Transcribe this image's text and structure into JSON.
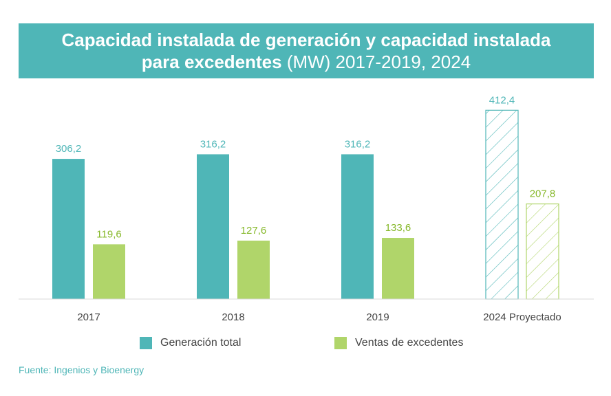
{
  "title": {
    "line1": "Capacidad instalada de generación y capacidad instalada",
    "line2_bold": "para excedentes",
    "line2_light": " (MW) 2017-2019, 2024"
  },
  "colors": {
    "teal": "#4fb6b7",
    "green": "#b0d56a",
    "teal_label": "#4fb6b7",
    "green_label": "#86b82a",
    "axis_label": "#444444"
  },
  "chart_data": {
    "type": "bar",
    "title": "Capacidad instalada de generación y capacidad instalada para excedentes (MW) 2017-2019, 2024",
    "categories": [
      "2017",
      "2018",
      "2019",
      "2024 Proyectado"
    ],
    "series": [
      {
        "name": "Generación total",
        "values": [
          306.2,
          316.2,
          316.2,
          412.4
        ],
        "labels": [
          "306,2",
          "316,2",
          "316,2",
          "412,4"
        ],
        "hatched": [
          false,
          false,
          false,
          true
        ]
      },
      {
        "name": "Ventas de excedentes",
        "values": [
          119.6,
          127.6,
          133.6,
          207.8
        ],
        "labels": [
          "119,6",
          "127,6",
          "133,6",
          "207,8"
        ],
        "hatched": [
          false,
          false,
          false,
          true
        ]
      }
    ],
    "xlabel": "",
    "ylabel": "",
    "grid": false,
    "legend_position": "bottom"
  },
  "legend": {
    "generation": "Generación total",
    "sales": "Ventas de excedentes"
  },
  "source": "Fuente: Ingenios y Bioenergy"
}
